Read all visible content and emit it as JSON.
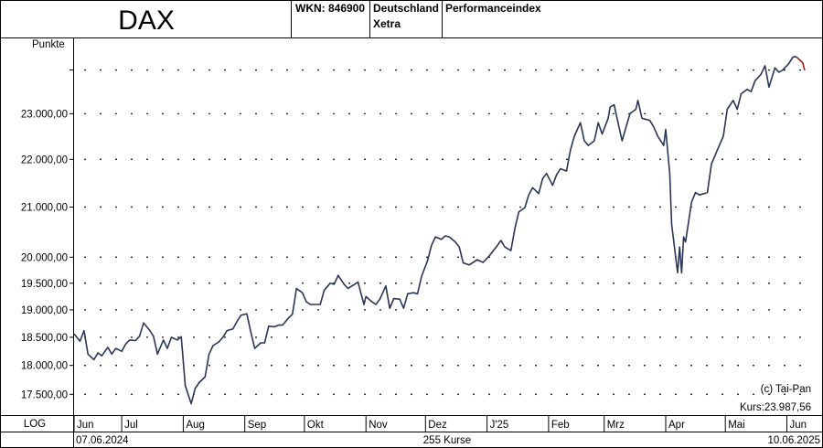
{
  "header": {
    "name": "DAX",
    "wkn": "WKN: 846900",
    "country": "Deutschland",
    "exchange": "Xetra",
    "index_type": "Performanceindex"
  },
  "footer": {
    "scale": "LOG",
    "start_date": "07.06.2024",
    "count": "255 Kurse",
    "end_date": "10.06.2025"
  },
  "info": {
    "copyright": "(c) Tai-Pan",
    "price": "Kurs:23.987,56"
  },
  "colors": {
    "line": "#2b3556",
    "last_segment": "#a02020",
    "grid": "#000000"
  },
  "chart_data": {
    "type": "line",
    "ylabel": "Punkte",
    "yscale": "log",
    "ylim": [
      17150,
      24750
    ],
    "y_ticks": [
      {
        "value": 17500,
        "label": "17.500,00"
      },
      {
        "value": 18000,
        "label": "18.000,00"
      },
      {
        "value": 18500,
        "label": "18.500,00"
      },
      {
        "value": 19000,
        "label": "19.000,00"
      },
      {
        "value": 19500,
        "label": "19.500,00"
      },
      {
        "value": 20000,
        "label": "20.000,00"
      },
      {
        "value": 21000,
        "label": "21.000,00"
      },
      {
        "value": 22000,
        "label": "22.000,00"
      },
      {
        "value": 23000,
        "label": "23.000,00"
      }
    ],
    "extra_grid": [
      24000
    ],
    "x_ticks": [
      {
        "date": "2024-06-01",
        "label": "Jun"
      },
      {
        "date": "2024-07-01",
        "label": "Jul"
      },
      {
        "date": "2024-08-01",
        "label": "Aug"
      },
      {
        "date": "2024-09-01",
        "label": "Sep"
      },
      {
        "date": "2024-10-01",
        "label": "Okt"
      },
      {
        "date": "2024-11-01",
        "label": "Nov"
      },
      {
        "date": "2024-12-01",
        "label": "Dez"
      },
      {
        "date": "2025-01-01",
        "label": "J'25"
      },
      {
        "date": "2025-02-01",
        "label": "Feb"
      },
      {
        "date": "2025-03-01",
        "label": "Mrz"
      },
      {
        "date": "2025-04-01",
        "label": "Apr"
      },
      {
        "date": "2025-05-01",
        "label": "Mai"
      },
      {
        "date": "2025-06-01",
        "label": "Jun"
      }
    ],
    "xlim": [
      "2024-06-07",
      "2025-06-10"
    ],
    "series": [
      {
        "values": [
          [
            "2024-06-07",
            18560
          ],
          [
            "2024-06-10",
            18430
          ],
          [
            "2024-06-12",
            18620
          ],
          [
            "2024-06-14",
            18200
          ],
          [
            "2024-06-17",
            18100
          ],
          [
            "2024-06-19",
            18220
          ],
          [
            "2024-06-21",
            18170
          ],
          [
            "2024-06-24",
            18320
          ],
          [
            "2024-06-26",
            18200
          ],
          [
            "2024-06-28",
            18300
          ],
          [
            "2024-07-01",
            18250
          ],
          [
            "2024-07-03",
            18380
          ],
          [
            "2024-07-05",
            18450
          ],
          [
            "2024-07-08",
            18440
          ],
          [
            "2024-07-10",
            18520
          ],
          [
            "2024-07-12",
            18760
          ],
          [
            "2024-07-15",
            18630
          ],
          [
            "2024-07-17",
            18520
          ],
          [
            "2024-07-19",
            18200
          ],
          [
            "2024-07-22",
            18450
          ],
          [
            "2024-07-24",
            18300
          ],
          [
            "2024-07-26",
            18500
          ],
          [
            "2024-07-29",
            18450
          ],
          [
            "2024-07-31",
            18510
          ],
          [
            "2024-08-02",
            17650
          ],
          [
            "2024-08-05",
            17340
          ],
          [
            "2024-08-07",
            17600
          ],
          [
            "2024-08-09",
            17700
          ],
          [
            "2024-08-12",
            17800
          ],
          [
            "2024-08-14",
            18200
          ],
          [
            "2024-08-16",
            18350
          ],
          [
            "2024-08-19",
            18420
          ],
          [
            "2024-08-21",
            18500
          ],
          [
            "2024-08-23",
            18620
          ],
          [
            "2024-08-26",
            18650
          ],
          [
            "2024-08-28",
            18780
          ],
          [
            "2024-08-30",
            18900
          ],
          [
            "2024-09-02",
            18930
          ],
          [
            "2024-09-04",
            18600
          ],
          [
            "2024-09-06",
            18300
          ],
          [
            "2024-09-09",
            18400
          ],
          [
            "2024-09-11",
            18400
          ],
          [
            "2024-09-13",
            18700
          ],
          [
            "2024-09-16",
            18690
          ],
          [
            "2024-09-18",
            18720
          ],
          [
            "2024-09-20",
            18720
          ],
          [
            "2024-09-23",
            18850
          ],
          [
            "2024-09-25",
            18920
          ],
          [
            "2024-09-27",
            19400
          ],
          [
            "2024-09-30",
            19320
          ],
          [
            "2024-10-02",
            19150
          ],
          [
            "2024-10-04",
            19100
          ],
          [
            "2024-10-07",
            19100
          ],
          [
            "2024-10-09",
            19100
          ],
          [
            "2024-10-11",
            19370
          ],
          [
            "2024-10-14",
            19500
          ],
          [
            "2024-10-16",
            19480
          ],
          [
            "2024-10-18",
            19650
          ],
          [
            "2024-10-21",
            19480
          ],
          [
            "2024-10-23",
            19400
          ],
          [
            "2024-10-25",
            19450
          ],
          [
            "2024-10-28",
            19520
          ],
          [
            "2024-10-31",
            19100
          ],
          [
            "2024-11-01",
            19250
          ],
          [
            "2024-11-04",
            19150
          ],
          [
            "2024-11-06",
            19100
          ],
          [
            "2024-11-08",
            19200
          ],
          [
            "2024-11-11",
            19450
          ],
          [
            "2024-11-13",
            19030
          ],
          [
            "2024-11-15",
            19210
          ],
          [
            "2024-11-18",
            19200
          ],
          [
            "2024-11-20",
            19030
          ],
          [
            "2024-11-22",
            19300
          ],
          [
            "2024-11-25",
            19320
          ],
          [
            "2024-11-27",
            19300
          ],
          [
            "2024-11-29",
            19630
          ],
          [
            "2024-12-02",
            19930
          ],
          [
            "2024-12-04",
            20230
          ],
          [
            "2024-12-06",
            20400
          ],
          [
            "2024-12-09",
            20350
          ],
          [
            "2024-12-11",
            20420
          ],
          [
            "2024-12-13",
            20400
          ],
          [
            "2024-12-16",
            20300
          ],
          [
            "2024-12-18",
            20200
          ],
          [
            "2024-12-20",
            19890
          ],
          [
            "2024-12-23",
            19850
          ],
          [
            "2024-12-27",
            19950
          ],
          [
            "2024-12-30",
            19900
          ],
          [
            "2025-01-02",
            20020
          ],
          [
            "2025-01-06",
            20220
          ],
          [
            "2025-01-08",
            20330
          ],
          [
            "2025-01-10",
            20200
          ],
          [
            "2025-01-13",
            20130
          ],
          [
            "2025-01-15",
            20560
          ],
          [
            "2025-01-17",
            20900
          ],
          [
            "2025-01-20",
            20990
          ],
          [
            "2025-01-22",
            21250
          ],
          [
            "2025-01-24",
            21400
          ],
          [
            "2025-01-27",
            21280
          ],
          [
            "2025-01-29",
            21590
          ],
          [
            "2025-01-31",
            21700
          ],
          [
            "2025-02-03",
            21450
          ],
          [
            "2025-02-05",
            21670
          ],
          [
            "2025-02-07",
            21800
          ],
          [
            "2025-02-10",
            21750
          ],
          [
            "2025-02-12",
            22200
          ],
          [
            "2025-02-14",
            22500
          ],
          [
            "2025-02-17",
            22800
          ],
          [
            "2025-02-19",
            22400
          ],
          [
            "2025-02-21",
            22300
          ],
          [
            "2025-02-24",
            22400
          ],
          [
            "2025-02-26",
            22800
          ],
          [
            "2025-02-28",
            22550
          ],
          [
            "2025-03-03",
            22900
          ],
          [
            "2025-03-04",
            23150
          ],
          [
            "2025-03-06",
            23200
          ],
          [
            "2025-03-07",
            23000
          ],
          [
            "2025-03-10",
            22400
          ],
          [
            "2025-03-12",
            22700
          ],
          [
            "2025-03-14",
            23000
          ],
          [
            "2025-03-17",
            23100
          ],
          [
            "2025-03-18",
            23300
          ],
          [
            "2025-03-20",
            22900
          ],
          [
            "2025-03-24",
            22850
          ],
          [
            "2025-03-26",
            22700
          ],
          [
            "2025-03-28",
            22500
          ],
          [
            "2025-03-31",
            22300
          ],
          [
            "2025-04-01",
            22650
          ],
          [
            "2025-04-03",
            21700
          ],
          [
            "2025-04-04",
            20650
          ],
          [
            "2025-04-07",
            19700
          ],
          [
            "2025-04-08",
            20200
          ],
          [
            "2025-04-09",
            19700
          ],
          [
            "2025-04-10",
            20400
          ],
          [
            "2025-04-11",
            20300
          ],
          [
            "2025-04-14",
            21100
          ],
          [
            "2025-04-16",
            21300
          ],
          [
            "2025-04-18",
            21250
          ],
          [
            "2025-04-22",
            21300
          ],
          [
            "2025-04-24",
            21900
          ],
          [
            "2025-04-28",
            22300
          ],
          [
            "2025-04-30",
            22500
          ],
          [
            "2025-05-02",
            23100
          ],
          [
            "2025-05-05",
            23300
          ],
          [
            "2025-05-07",
            23100
          ],
          [
            "2025-05-09",
            23450
          ],
          [
            "2025-05-12",
            23550
          ],
          [
            "2025-05-14",
            23500
          ],
          [
            "2025-05-16",
            23750
          ],
          [
            "2025-05-19",
            23900
          ],
          [
            "2025-05-21",
            24100
          ],
          [
            "2025-05-23",
            23600
          ],
          [
            "2025-05-26",
            24050
          ],
          [
            "2025-05-28",
            23950
          ],
          [
            "2025-05-30",
            24000
          ],
          [
            "2025-06-02",
            24150
          ],
          [
            "2025-06-04",
            24300
          ],
          [
            "2025-06-05",
            24320
          ],
          [
            "2025-06-06",
            24300
          ]
        ]
      }
    ],
    "last_segment": [
      [
        "2025-06-06",
        24300
      ],
      [
        "2025-06-09",
        24170
      ],
      [
        "2025-06-10",
        23988
      ]
    ]
  }
}
